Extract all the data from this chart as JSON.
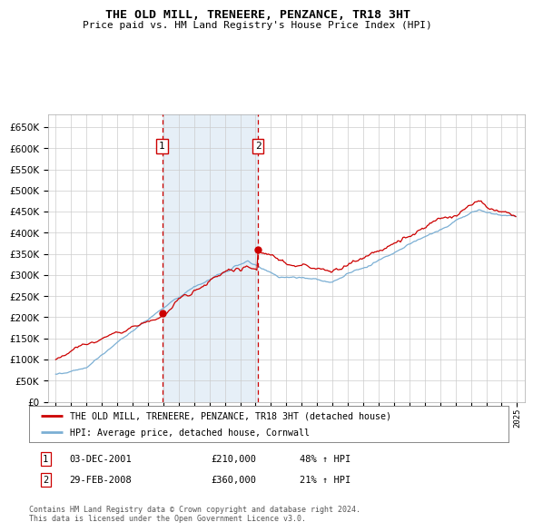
{
  "title": "THE OLD MILL, TRENEERE, PENZANCE, TR18 3HT",
  "subtitle": "Price paid vs. HM Land Registry's House Price Index (HPI)",
  "legend_entry1": "THE OLD MILL, TRENEERE, PENZANCE, TR18 3HT (detached house)",
  "legend_entry2": "HPI: Average price, detached house, Cornwall",
  "transaction1_date": "03-DEC-2001",
  "transaction1_price": "£210,000",
  "transaction1_hpi": "48% ↑ HPI",
  "transaction2_date": "29-FEB-2008",
  "transaction2_price": "£360,000",
  "transaction2_hpi": "21% ↑ HPI",
  "footer": "Contains HM Land Registry data © Crown copyright and database right 2024.\nThis data is licensed under the Open Government Licence v3.0.",
  "hpi_color": "#7bafd4",
  "price_color": "#cc0000",
  "marker_color": "#cc0000",
  "vline_color": "#cc0000",
  "shade_color": "#dce9f5",
  "grid_color": "#cccccc",
  "bg_color": "#ffffff",
  "ylim": [
    0,
    680000
  ],
  "yticks": [
    0,
    50000,
    100000,
    150000,
    200000,
    250000,
    300000,
    350000,
    400000,
    450000,
    500000,
    550000,
    600000,
    650000
  ],
  "transaction1_x": 2001.92,
  "transaction2_x": 2008.16,
  "transaction1_y": 210000,
  "transaction2_y": 360000,
  "xlim_left": 1994.5,
  "xlim_right": 2025.5
}
